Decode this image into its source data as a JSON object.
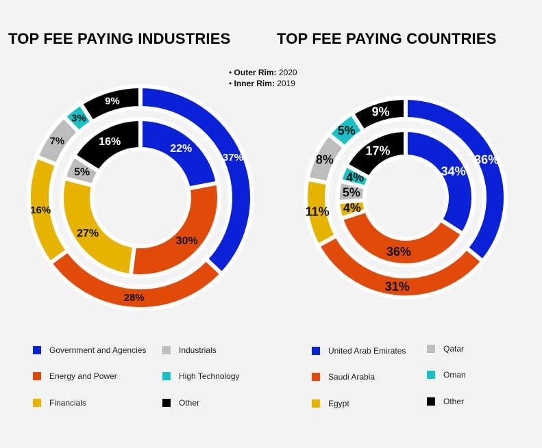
{
  "titles": {
    "industries": "TOP FEE PAYING INDUSTRIES",
    "countries": "TOP FEE PAYING COUNTRIES"
  },
  "note": {
    "outer_label": "Outer Rim:",
    "outer_value": "2020",
    "inner_label": "Inner Rim:",
    "inner_value": "2019"
  },
  "chart_data": [
    {
      "type": "pie",
      "title": "TOP FEE PAYING INDUSTRIES",
      "categories": [
        "Government and Agencies",
        "Energy and Power",
        "Financials",
        "Industrials",
        "High Technology",
        "Other"
      ],
      "colors": [
        "#0a22d6",
        "#e04a0a",
        "#e6b400",
        "#bdbdbd",
        "#19c1c4",
        "#000000"
      ],
      "series": [
        {
          "name": "2020",
          "values": [
            37,
            28,
            16,
            7,
            3,
            9
          ],
          "labels": [
            "37%",
            "28%",
            "16%",
            "7%",
            "3%",
            "9%"
          ]
        },
        {
          "name": "2019",
          "values": [
            22,
            30,
            27,
            5,
            0,
            16
          ],
          "labels": [
            "22%",
            "30%",
            "27%",
            "5%",
            "",
            "16%"
          ]
        }
      ],
      "legend_layout": [
        [
          "Government and Agencies",
          "Industrials"
        ],
        [
          "Energy and Power",
          "High Technology"
        ],
        [
          "Financials",
          "Other"
        ]
      ]
    },
    {
      "type": "pie",
      "title": "TOP FEE PAYING COUNTRIES",
      "categories": [
        "United Arab Emirates",
        "Saudi Arabia",
        "Egypt",
        "Qatar",
        "Oman",
        "Other"
      ],
      "colors": [
        "#0a22d6",
        "#e04a0a",
        "#e6b400",
        "#bdbdbd",
        "#19c1c4",
        "#000000"
      ],
      "series": [
        {
          "name": "2020",
          "values": [
            36,
            31,
            11,
            8,
            5,
            9
          ],
          "labels": [
            "36%",
            "31%",
            "11%",
            "8%",
            "5%",
            "9%"
          ]
        },
        {
          "name": "2019",
          "values": [
            34,
            36,
            4,
            5,
            4,
            17
          ],
          "labels": [
            "34%",
            "36%",
            "4%",
            "5%",
            "4%",
            "17%"
          ]
        }
      ]
    }
  ]
}
